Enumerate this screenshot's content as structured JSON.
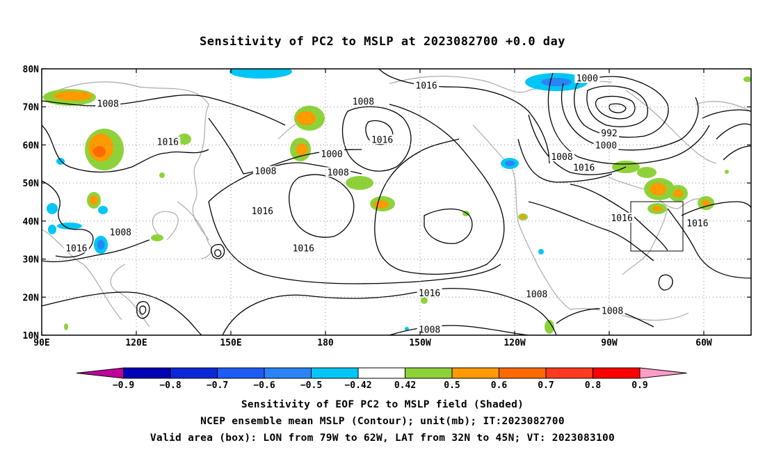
{
  "title": "Sensitivity of PC2 to MSLP at 2023082700 +0.0 day",
  "lat_labels": [
    "80N",
    "70N",
    "60N",
    "50N",
    "40N",
    "30N",
    "20N",
    "10N"
  ],
  "lon_labels": [
    "90E",
    "120E",
    "150E",
    "180",
    "150W",
    "120W",
    "90W",
    "60W"
  ],
  "contour_labels": [
    {
      "text": "1016",
      "lon": -148,
      "lat": 75.5
    },
    {
      "text": "1008",
      "lon": -168,
      "lat": 71.3
    },
    {
      "text": "1000",
      "lon": -97,
      "lat": 77.4
    },
    {
      "text": "1008",
      "lon": 111,
      "lat": 70.8
    },
    {
      "text": "1016",
      "lon": 130,
      "lat": 60.7
    },
    {
      "text": "1016",
      "lon": -162,
      "lat": 61.3
    },
    {
      "text": "1000",
      "lon": -178,
      "lat": 57.5
    },
    {
      "text": "1008",
      "lon": -176,
      "lat": 52.7
    },
    {
      "text": "1008",
      "lon": 161,
      "lat": 53.0
    },
    {
      "text": "1016",
      "lon": 160,
      "lat": 42.5
    },
    {
      "text": "992",
      "lon": -90,
      "lat": 63.0
    },
    {
      "text": "1000",
      "lon": -91,
      "lat": 59.8
    },
    {
      "text": "1008",
      "lon": -105,
      "lat": 56.8
    },
    {
      "text": "1016",
      "lon": -98,
      "lat": 54.0
    },
    {
      "text": "1016",
      "lon": -86,
      "lat": 40.7
    },
    {
      "text": "1016",
      "lon": -62,
      "lat": 39.3
    },
    {
      "text": "1008",
      "lon": 115,
      "lat": 37.0
    },
    {
      "text": "1016",
      "lon": 101,
      "lat": 32.8
    },
    {
      "text": "1016",
      "lon": 173,
      "lat": 32.8
    },
    {
      "text": "1016",
      "lon": -147,
      "lat": 21.0
    },
    {
      "text": "1008",
      "lon": -113,
      "lat": 20.7
    },
    {
      "text": "1008",
      "lon": -89,
      "lat": 16.3
    },
    {
      "text": "1008",
      "lon": -147,
      "lat": 11.4
    }
  ],
  "colorbar": {
    "levels": [
      "−0.9",
      "−0.8",
      "−0.7",
      "−0.6",
      "−0.5",
      "−0.42",
      "0.42",
      "0.5",
      "0.6",
      "0.7",
      "0.8",
      "0.9"
    ],
    "colors": [
      "#c0009a",
      "#0000b4",
      "#0b28d8",
      "#1c5cf5",
      "#2b84f5",
      "#00c6f5",
      "#ffffff",
      "#8ed23a",
      "#ff9a00",
      "#ff6a00",
      "#ff3a1e",
      "#ff0000",
      "#ff9ec8"
    ]
  },
  "captions": [
    "Sensitivity of EOF PC2 to MSLP field (Shaded)",
    "NCEP ensemble mean MSLP (Contour); unit(mb); IT:2023082700",
    "Valid area (box): LON from 79W to 62W, LAT from 32N to 45N; VT: 2023083100"
  ]
}
